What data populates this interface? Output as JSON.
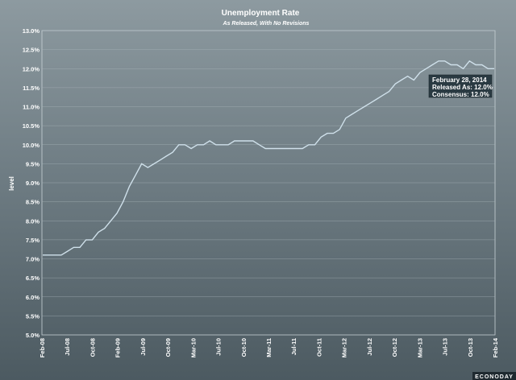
{
  "chart_data": {
    "type": "line",
    "title": "Unemployment Rate",
    "subtitle": "As Released, With No Revisions",
    "ylabel": "level",
    "xlabel": "",
    "ylim": [
      5.0,
      13.0
    ],
    "y_ticks": [
      "5.0%",
      "5.5%",
      "6.0%",
      "6.5%",
      "7.0%",
      "7.5%",
      "8.0%",
      "8.5%",
      "9.0%",
      "9.5%",
      "10.0%",
      "10.5%",
      "11.0%",
      "11.5%",
      "12.0%",
      "12.5%",
      "13.0%"
    ],
    "x_ticks": [
      "Feb-08",
      "Jul-08",
      "Oct-08",
      "Feb-09",
      "Jul-09",
      "Oct-09",
      "Mar-10",
      "Jul-10",
      "Oct-10",
      "Mar-11",
      "Jul-11",
      "Oct-11",
      "Mar-12",
      "Jul-12",
      "Oct-12",
      "Mar-13",
      "Jul-13",
      "Oct-13",
      "Feb-14"
    ],
    "grid": true,
    "legend": "none",
    "line_color": "#cfe0ea",
    "series": [
      {
        "values": [
          7.1,
          7.1,
          7.1,
          7.1,
          7.2,
          7.3,
          7.3,
          7.5,
          7.5,
          7.7,
          7.8,
          8.0,
          8.2,
          8.5,
          8.9,
          9.2,
          9.5,
          9.4,
          9.5,
          9.6,
          9.7,
          9.8,
          10.0,
          10.0,
          9.9,
          10.0,
          10.0,
          10.1,
          10.0,
          10.0,
          10.0,
          10.1,
          10.1,
          10.1,
          10.1,
          10.0,
          9.9,
          9.9,
          9.9,
          9.9,
          9.9,
          9.9,
          9.9,
          10.0,
          10.0,
          10.2,
          10.3,
          10.3,
          10.4,
          10.7,
          10.8,
          10.9,
          11.0,
          11.1,
          11.2,
          11.3,
          11.4,
          11.6,
          11.7,
          11.8,
          11.7,
          11.9,
          12.0,
          12.1,
          12.2,
          12.2,
          12.1,
          12.1,
          12.0,
          12.2,
          12.1,
          12.1,
          12.0,
          12.0
        ]
      }
    ],
    "tooltip": {
      "date": "February 28, 2014",
      "released": "Released As: 12.0%",
      "consensus": "Consensus: 12.0%"
    }
  },
  "footer": {
    "logo_text": "ECONODAY"
  }
}
